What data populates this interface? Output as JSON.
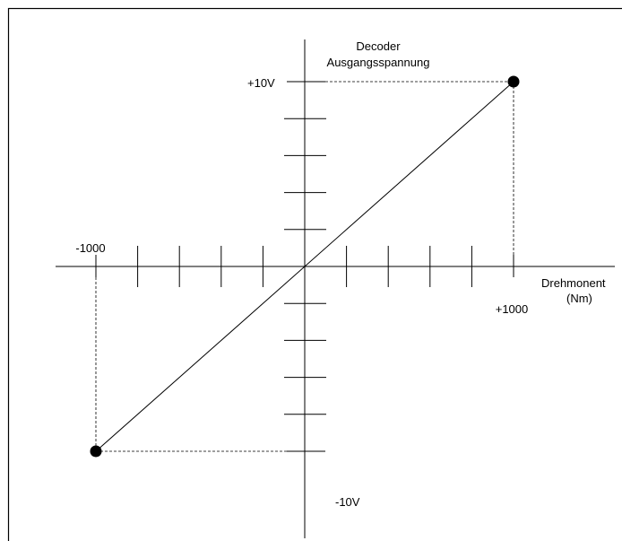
{
  "chart_data": {
    "type": "line",
    "title": "",
    "xlabel_line1": "Drehmonent",
    "xlabel_line2": "(Nm)",
    "ylabel_line1": "Decoder",
    "ylabel_line2": "Ausgangsspannung",
    "xlim": [
      -1000,
      1000
    ],
    "ylim": [
      -10,
      10
    ],
    "x_ticks": [
      -1000,
      -800,
      -600,
      -400,
      -200,
      200,
      400,
      600,
      800,
      1000
    ],
    "y_ticks": [
      -10,
      -8,
      -6,
      -4,
      -2,
      2,
      4,
      6,
      8,
      10
    ],
    "x_tick_labels": {
      "min": "-1000",
      "max": "+1000"
    },
    "y_tick_labels": {
      "min": "-10V",
      "max": "+10V"
    },
    "grid": false,
    "series": [
      {
        "x": [
          -1000,
          1000
        ],
        "y": [
          -10,
          10
        ]
      }
    ],
    "endpoints": [
      {
        "x": -1000,
        "y": -10
      },
      {
        "x": 1000,
        "y": 10
      }
    ]
  }
}
